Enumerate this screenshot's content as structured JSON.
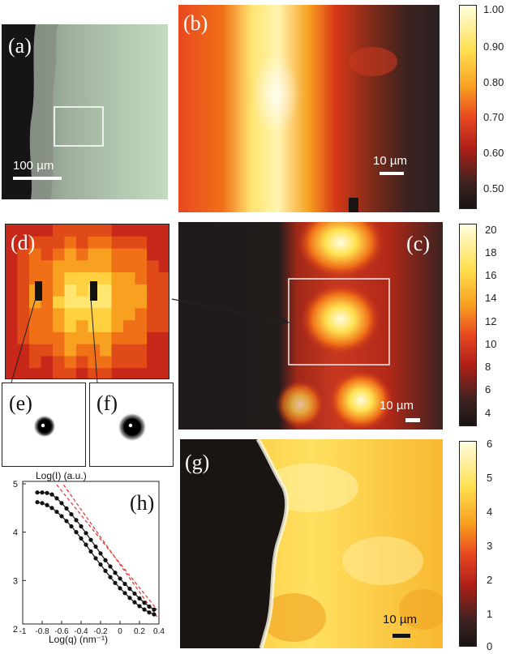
{
  "panels": {
    "a": {
      "label": "(a)",
      "scalebar": "100 µm"
    },
    "b": {
      "label": "(b)",
      "scalebar": "10 µm"
    },
    "c": {
      "label": "(c)",
      "scalebar": "10 µm"
    },
    "d": {
      "label": "(d)"
    },
    "e": {
      "label": "(e)"
    },
    "f": {
      "label": "(f)"
    },
    "g": {
      "label": "(g)",
      "scalebar": "10 µm"
    },
    "h": {
      "label": "(h)"
    }
  },
  "colorbars": {
    "b": {
      "ticks": [
        "1.00",
        "0.90",
        "0.80",
        "0.70",
        "0.60",
        "0.50"
      ]
    },
    "c": {
      "ticks": [
        "20",
        "18",
        "16",
        "14",
        "12",
        "10",
        "8",
        "6",
        "4"
      ]
    },
    "g": {
      "ticks": [
        "6",
        "5",
        "4",
        "3",
        "2",
        "1",
        "0"
      ]
    }
  },
  "colors": {
    "hot_dark": "#1a1413",
    "hot_red": "#c8281a",
    "hot_orange": "#f07010",
    "hot_yellow": "#ffe050",
    "hot_white": "#fffde0",
    "dashed_fit": "#e03030"
  },
  "chart_data": {
    "type": "line",
    "ylabel": "Log(I) (a.u.)",
    "xlabel": "Log(q) (nm⁻¹)",
    "xlim": [
      -1,
      0.4
    ],
    "ylim": [
      2.3,
      5
    ],
    "x_ticks": [
      "-1",
      "-0.8",
      "-0.6",
      "-0.4",
      "-0.2",
      "0",
      "0.2",
      "0.4"
    ],
    "y_ticks": [
      "5",
      "4",
      "3",
      "2"
    ],
    "series": [
      {
        "x": [
          -0.85,
          -0.8,
          -0.75,
          -0.7,
          -0.65,
          -0.6,
          -0.55,
          -0.5,
          -0.45,
          -0.4,
          -0.35,
          -0.3,
          -0.25,
          -0.2,
          -0.15,
          -0.1,
          -0.05,
          0,
          0.05,
          0.1,
          0.15,
          0.2,
          0.25,
          0.3,
          0.35
        ],
        "values": [
          4.82,
          4.82,
          4.81,
          4.78,
          4.7,
          4.6,
          4.49,
          4.37,
          4.25,
          4.12,
          3.98,
          3.84,
          3.7,
          3.56,
          3.42,
          3.29,
          3.16,
          3.04,
          2.93,
          2.83,
          2.73,
          2.63,
          2.54,
          2.46,
          2.4
        ]
      },
      {
        "x": [
          -0.85,
          -0.8,
          -0.75,
          -0.7,
          -0.65,
          -0.6,
          -0.55,
          -0.5,
          -0.45,
          -0.4,
          -0.35,
          -0.3,
          -0.25,
          -0.2,
          -0.15,
          -0.1,
          -0.05,
          0,
          0.05,
          0.1,
          0.15,
          0.2,
          0.25,
          0.3,
          0.35
        ],
        "values": [
          4.62,
          4.6,
          4.56,
          4.5,
          4.42,
          4.33,
          4.23,
          4.12,
          4.0,
          3.87,
          3.74,
          3.6,
          3.46,
          3.33,
          3.2,
          3.07,
          2.95,
          2.84,
          2.74,
          2.64,
          2.55,
          2.47,
          2.4,
          2.34,
          2.3
        ]
      }
    ],
    "fit_lines": [
      {
        "x": [
          -0.65,
          0.38
        ],
        "values": [
          4.98,
          2.4
        ]
      },
      {
        "x": [
          -0.58,
          0.38
        ],
        "values": [
          4.98,
          2.25
        ]
      }
    ]
  }
}
